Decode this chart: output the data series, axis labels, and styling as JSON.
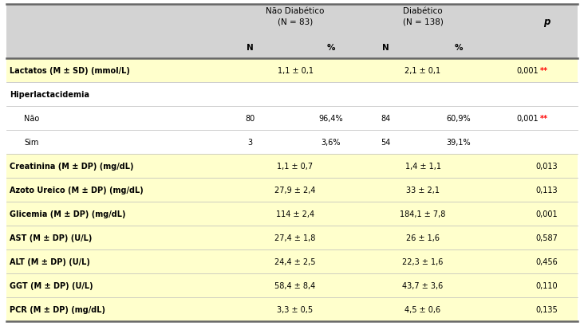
{
  "header_bg": "#d3d3d3",
  "row_bg_yellow": "#ffffcc",
  "row_bg_white": "#ffffff",
  "rows": [
    {
      "label": "Lactatos (M ± SD) (mmol/L)",
      "bold": true,
      "indent": 0,
      "nd_N": "",
      "nd_pct": "1,1 ± 0,1",
      "d_N": "",
      "d_pct": "2,1 ± 0,1",
      "p": "0,001",
      "p_stars": "**",
      "p_red": true,
      "bg": "yellow",
      "span": true
    },
    {
      "label": "Hiperlactacidemia",
      "bold": true,
      "indent": 0,
      "nd_N": "",
      "nd_pct": "",
      "d_N": "",
      "d_pct": "",
      "p": "",
      "p_stars": "",
      "p_red": false,
      "bg": "white",
      "span": false
    },
    {
      "label": "Não",
      "bold": false,
      "indent": 1,
      "nd_N": "80",
      "nd_pct": "96,4%",
      "d_N": "84",
      "d_pct": "60,9%",
      "p": "0,001",
      "p_stars": "**",
      "p_red": true,
      "bg": "white",
      "span": false
    },
    {
      "label": "Sim",
      "bold": false,
      "indent": 1,
      "nd_N": "3",
      "nd_pct": "3,6%",
      "d_N": "54",
      "d_pct": "39,1%",
      "p": "",
      "p_stars": "",
      "p_red": false,
      "bg": "white",
      "span": false
    },
    {
      "label": "Creatinina (M ± DP) (mg/dL)",
      "bold": true,
      "indent": 0,
      "nd_N": "",
      "nd_pct": "1,1 ± 0,7",
      "d_N": "",
      "d_pct": "1,4 ± 1,1",
      "p": "0,013",
      "p_stars": "",
      "p_red": false,
      "bg": "yellow",
      "span": true
    },
    {
      "label": "Azoto Ureico (M ± DP) (mg/dL)",
      "bold": true,
      "indent": 0,
      "nd_N": "",
      "nd_pct": "27,9 ± 2,4",
      "d_N": "",
      "d_pct": "33 ± 2,1",
      "p": "0,113",
      "p_stars": "",
      "p_red": false,
      "bg": "yellow",
      "span": true
    },
    {
      "label": "Glicemia (M ± DP) (mg/dL)",
      "bold": true,
      "indent": 0,
      "nd_N": "",
      "nd_pct": "114 ± 2,4",
      "d_N": "",
      "d_pct": "184,1 ± 7,8",
      "p": "0,001",
      "p_stars": "",
      "p_red": false,
      "bg": "yellow",
      "span": true
    },
    {
      "label": "AST (M ± DP) (U/L)",
      "bold": true,
      "indent": 0,
      "nd_N": "",
      "nd_pct": "27,4 ± 1,8",
      "d_N": "",
      "d_pct": "26 ± 1,6",
      "p": "0,587",
      "p_stars": "",
      "p_red": false,
      "bg": "yellow",
      "span": true
    },
    {
      "label": "ALT (M ± DP) (U/L)",
      "bold": true,
      "indent": 0,
      "nd_N": "",
      "nd_pct": "24,4 ± 2,5",
      "d_N": "",
      "d_pct": "22,3 ± 1,6",
      "p": "0,456",
      "p_stars": "",
      "p_red": false,
      "bg": "yellow",
      "span": true
    },
    {
      "label": "GGT (M ± DP) (U/L)",
      "bold": true,
      "indent": 0,
      "nd_N": "",
      "nd_pct": "58,4 ± 8,4",
      "d_N": "",
      "d_pct": "43,7 ± 3,6",
      "p": "0,110",
      "p_stars": "",
      "p_red": false,
      "bg": "yellow",
      "span": true
    },
    {
      "label": "PCR (M ± DP) (mg/dL)",
      "bold": true,
      "indent": 0,
      "nd_N": "",
      "nd_pct": "3,3 ± 0,5",
      "d_N": "",
      "d_pct": "4,5 ± 0,6",
      "p": "0,135",
      "p_stars": "",
      "p_red": false,
      "bg": "yellow",
      "span": true
    }
  ]
}
